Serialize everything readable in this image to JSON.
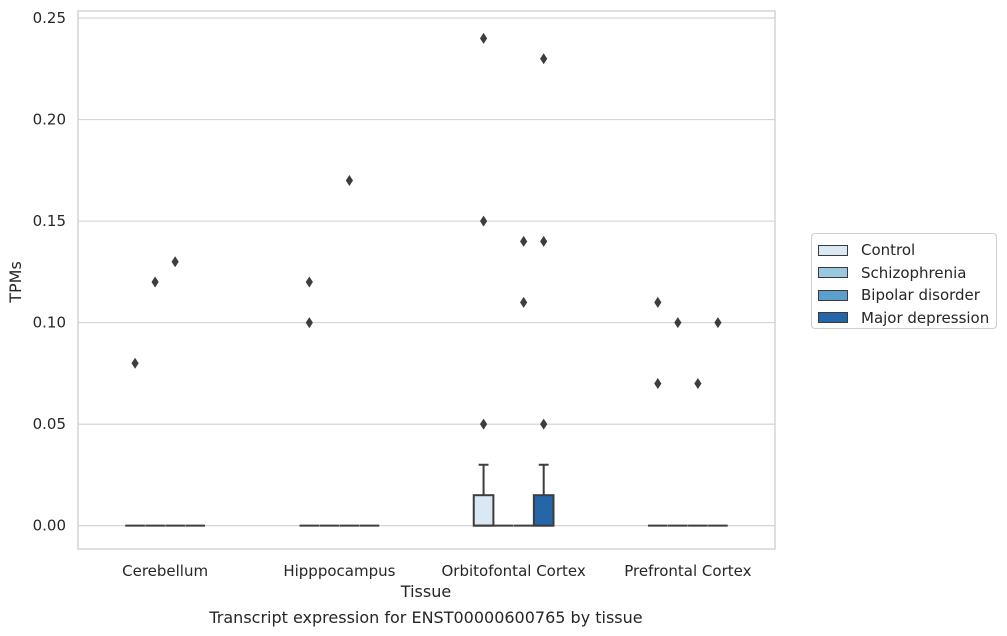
{
  "chart_data": {
    "type": "box",
    "title": "",
    "caption": "Transcript expression for ENST00000600765 by tissue",
    "xlabel": "Tissue",
    "ylabel": "TPMs",
    "ylim": [
      -0.0115,
      0.2535
    ],
    "yticks": [
      0.0,
      0.05,
      0.1,
      0.15,
      0.2,
      0.25
    ],
    "ytick_labels": [
      "0.00",
      "0.05",
      "0.10",
      "0.15",
      "0.20",
      "0.25"
    ],
    "grid": "horizontal",
    "legend_position": "outside-right",
    "categories": [
      "Cerebellum",
      "Hipppocampus",
      "Orbitofontal Cortex",
      "Prefrontal Cortex"
    ],
    "series": [
      {
        "name": "Control",
        "color": "#dae8f5",
        "boxes": [
          {
            "min": 0,
            "q1": 0,
            "median": 0,
            "q3": 0,
            "max": 0,
            "outliers": [
              0.08
            ]
          },
          {
            "min": 0,
            "q1": 0,
            "median": 0,
            "q3": 0,
            "max": 0,
            "outliers": [
              0.12,
              0.1
            ]
          },
          {
            "min": 0,
            "q1": 0,
            "median": 0,
            "q3": 0.015,
            "max": 0.03,
            "outliers": [
              0.24,
              0.15,
              0.05
            ]
          },
          {
            "min": 0,
            "q1": 0,
            "median": 0,
            "q3": 0,
            "max": 0,
            "outliers": [
              0.11,
              0.07
            ]
          }
        ]
      },
      {
        "name": "Schizophrenia",
        "color": "#9ac8e0",
        "boxes": [
          {
            "min": 0,
            "q1": 0,
            "median": 0,
            "q3": 0,
            "max": 0,
            "outliers": [
              0.12
            ]
          },
          {
            "min": 0,
            "q1": 0,
            "median": 0,
            "q3": 0,
            "max": 0,
            "outliers": []
          },
          {
            "min": 0,
            "q1": 0,
            "median": 0,
            "q3": 0,
            "max": 0,
            "outliers": []
          },
          {
            "min": 0,
            "q1": 0,
            "median": 0,
            "q3": 0,
            "max": 0,
            "outliers": [
              0.1
            ]
          }
        ]
      },
      {
        "name": "Bipolar disorder",
        "color": "#5a9fcd",
        "boxes": [
          {
            "min": 0,
            "q1": 0,
            "median": 0,
            "q3": 0,
            "max": 0,
            "outliers": [
              0.13
            ]
          },
          {
            "min": 0,
            "q1": 0,
            "median": 0,
            "q3": 0,
            "max": 0,
            "outliers": [
              0.17
            ]
          },
          {
            "min": 0,
            "q1": 0,
            "median": 0,
            "q3": 0,
            "max": 0,
            "outliers": [
              0.14,
              0.11
            ]
          },
          {
            "min": 0,
            "q1": 0,
            "median": 0,
            "q3": 0,
            "max": 0,
            "outliers": [
              0.07
            ]
          }
        ]
      },
      {
        "name": "Major depression",
        "color": "#2466a8",
        "boxes": [
          {
            "min": 0,
            "q1": 0,
            "median": 0,
            "q3": 0,
            "max": 0,
            "outliers": []
          },
          {
            "min": 0,
            "q1": 0,
            "median": 0,
            "q3": 0,
            "max": 0,
            "outliers": []
          },
          {
            "min": 0,
            "q1": 0,
            "median": 0,
            "q3": 0.015,
            "max": 0.03,
            "outliers": [
              0.23,
              0.14,
              0.05
            ]
          },
          {
            "min": 0,
            "q1": 0,
            "median": 0,
            "q3": 0,
            "max": 0,
            "outliers": [
              0.1
            ]
          }
        ]
      }
    ]
  }
}
